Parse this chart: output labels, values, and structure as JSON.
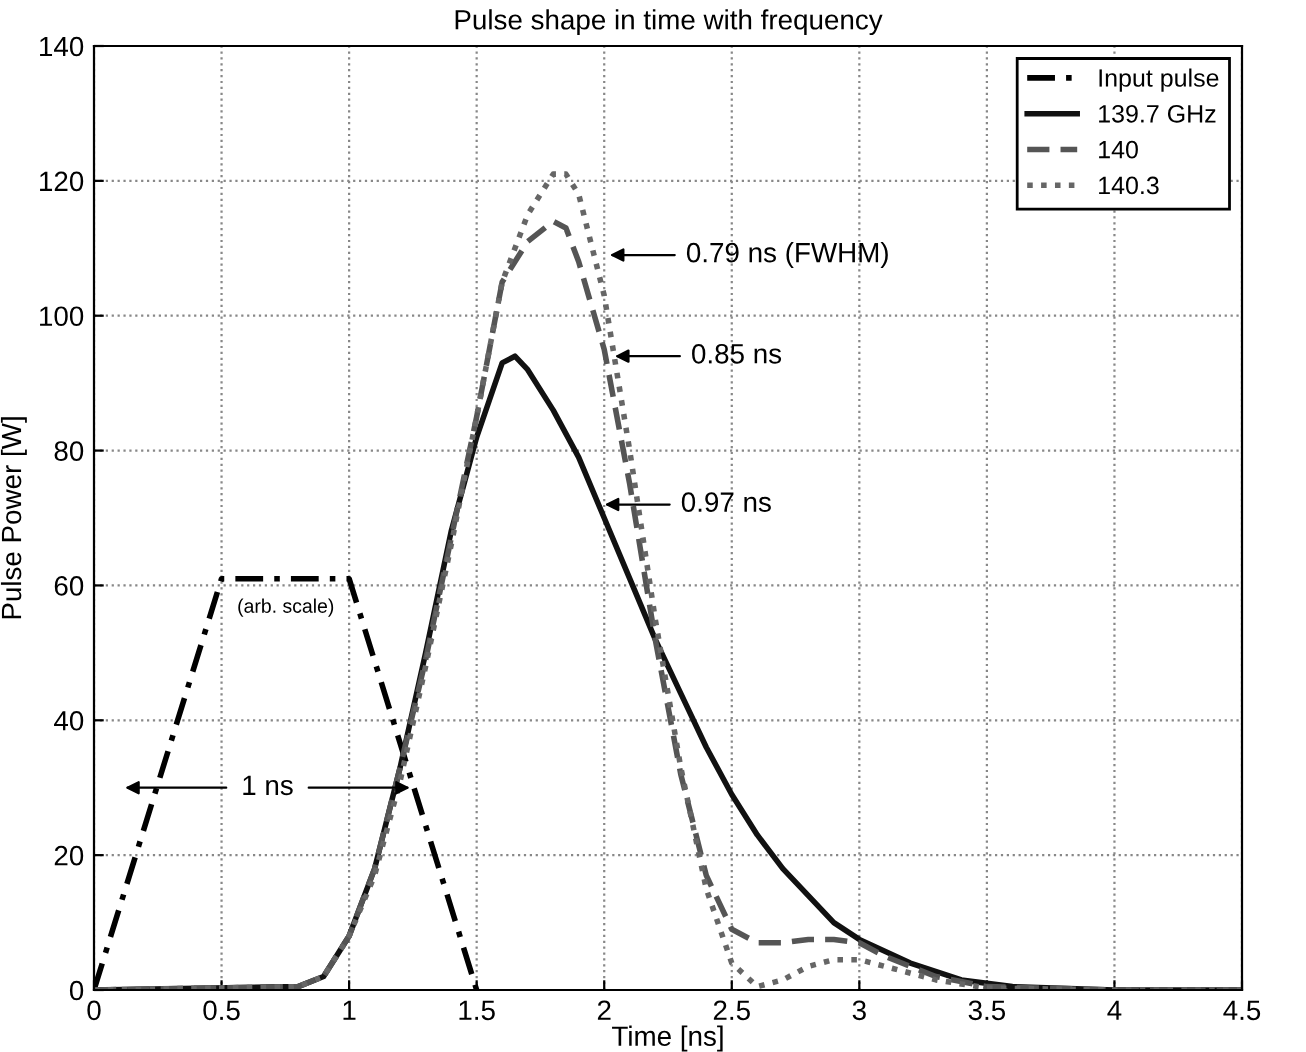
{
  "chart_data": {
    "type": "line",
    "title": "Pulse shape in time with frequency",
    "xlabel": "Time [ns]",
    "ylabel": "Pulse Power [W]",
    "xlim": [
      0,
      4.5
    ],
    "ylim": [
      0,
      140
    ],
    "xticks": [
      0,
      0.5,
      1,
      1.5,
      2,
      2.5,
      3,
      3.5,
      4,
      4.5
    ],
    "yticks": [
      0,
      20,
      40,
      60,
      80,
      100,
      120,
      140
    ],
    "grid": true,
    "legend": "top right",
    "marker": "none",
    "series": [
      {
        "name": "Input pulse",
        "color": "#000000",
        "line_style": "dashdot",
        "x": [
          0,
          0.5,
          1.0,
          1.5
        ],
        "values": [
          0,
          61,
          61,
          0
        ]
      },
      {
        "name": "139.7 GHz",
        "color": "#111111",
        "line_style": "solid",
        "x": [
          0,
          0.8,
          0.9,
          1.0,
          1.1,
          1.2,
          1.3,
          1.4,
          1.5,
          1.6,
          1.65,
          1.7,
          1.8,
          1.9,
          2.0,
          2.1,
          2.2,
          2.3,
          2.4,
          2.5,
          2.6,
          2.7,
          2.8,
          2.9,
          3.0,
          3.2,
          3.4,
          3.6,
          4.0,
          4.5
        ],
        "values": [
          0,
          0.5,
          2,
          8,
          18,
          33,
          50,
          68,
          82,
          93,
          94,
          92,
          86,
          79,
          70,
          61,
          52,
          44,
          36,
          29,
          23,
          18,
          14,
          10,
          7.5,
          4,
          1.5,
          0.5,
          0,
          0
        ]
      },
      {
        "name": "140",
        "color": "#555555",
        "line_style": "dashed",
        "x": [
          0,
          0.8,
          0.9,
          1.0,
          1.1,
          1.2,
          1.3,
          1.4,
          1.5,
          1.6,
          1.7,
          1.8,
          1.85,
          1.9,
          2.0,
          2.1,
          2.2,
          2.3,
          2.4,
          2.5,
          2.6,
          2.7,
          2.8,
          2.9,
          3.0,
          3.1,
          3.3,
          3.5,
          4.0,
          4.5
        ],
        "values": [
          0,
          0.5,
          2,
          8,
          18,
          33,
          49,
          67,
          85,
          105,
          111,
          114,
          113,
          108,
          95,
          75,
          52,
          32,
          17,
          9,
          7,
          7,
          7.5,
          7.5,
          7,
          5,
          2,
          0.5,
          0,
          0
        ]
      },
      {
        "name": "140.3",
        "color": "#666666",
        "line_style": "dotted",
        "x": [
          0,
          0.8,
          0.9,
          1.0,
          1.1,
          1.2,
          1.3,
          1.4,
          1.5,
          1.6,
          1.7,
          1.8,
          1.85,
          1.9,
          2.0,
          2.1,
          2.2,
          2.3,
          2.4,
          2.5,
          2.6,
          2.7,
          2.8,
          2.9,
          3.0,
          3.1,
          3.3,
          3.5,
          4.0,
          4.5
        ],
        "values": [
          0,
          0.5,
          2,
          8,
          17,
          31,
          48,
          66,
          85,
          105,
          115,
          121,
          121,
          118,
          103,
          80,
          55,
          33,
          15,
          4,
          0.5,
          1.5,
          3.5,
          4.5,
          4.5,
          3.5,
          1.5,
          0.3,
          0,
          0
        ]
      }
    ],
    "annotations": [
      "(arb. scale)",
      {
        "text": "1 ns",
        "x": 1.26,
        "y": 30
      },
      {
        "text": "0.79 ns (FWHM)",
        "x": 2.0,
        "y": 109
      },
      {
        "text": "0.85 ns",
        "x": 2.02,
        "y": 94
      },
      {
        "text": "0.97 ns",
        "x": 1.98,
        "y": 72
      }
    ]
  }
}
